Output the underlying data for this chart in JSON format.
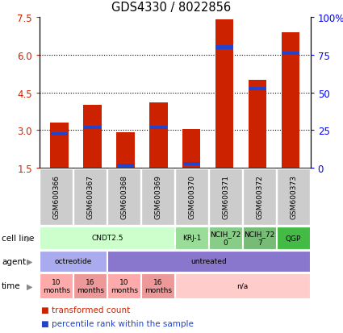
{
  "title": "GDS4330 / 8022856",
  "samples": [
    "GSM600366",
    "GSM600367",
    "GSM600368",
    "GSM600369",
    "GSM600370",
    "GSM600371",
    "GSM600372",
    "GSM600373"
  ],
  "bar_values": [
    3.3,
    4.0,
    2.9,
    4.1,
    3.05,
    7.4,
    5.0,
    6.9
  ],
  "percentile_values": [
    2.85,
    3.1,
    1.6,
    3.1,
    1.65,
    6.3,
    4.65,
    6.05
  ],
  "bar_color": "#cc2200",
  "percentile_color": "#2244cc",
  "ylim": [
    1.5,
    7.5
  ],
  "yticks_left": [
    1.5,
    3.0,
    4.5,
    6.0,
    7.5
  ],
  "yticks_right": [
    0,
    25,
    50,
    75,
    100
  ],
  "ytick_labels_right": [
    "0",
    "25",
    "50",
    "75",
    "100%"
  ],
  "cell_line_groups": [
    {
      "label": "CNDT2.5",
      "start": 0,
      "end": 4,
      "color": "#ccffcc"
    },
    {
      "label": "KRJ-1",
      "start": 4,
      "end": 5,
      "color": "#99dd99"
    },
    {
      "label": "NCIH_72\n0",
      "start": 5,
      "end": 6,
      "color": "#88cc88"
    },
    {
      "label": "NCIH_72\n7",
      "start": 6,
      "end": 7,
      "color": "#77bb77"
    },
    {
      "label": "QGP",
      "start": 7,
      "end": 8,
      "color": "#44bb44"
    }
  ],
  "agent_groups": [
    {
      "label": "octreotide",
      "start": 0,
      "end": 2,
      "color": "#aaaaee"
    },
    {
      "label": "untreated",
      "start": 2,
      "end": 8,
      "color": "#8877cc"
    }
  ],
  "time_groups": [
    {
      "label": "10\nmonths",
      "start": 0,
      "end": 1,
      "color": "#ffaaaa"
    },
    {
      "label": "16\nmonths",
      "start": 1,
      "end": 2,
      "color": "#ee9999"
    },
    {
      "label": "10\nmonths",
      "start": 2,
      "end": 3,
      "color": "#ffaaaa"
    },
    {
      "label": "16\nmonths",
      "start": 3,
      "end": 4,
      "color": "#ee9999"
    },
    {
      "label": "n/a",
      "start": 4,
      "end": 8,
      "color": "#ffcccc"
    }
  ],
  "sample_box_color": "#cccccc",
  "legend_bar_label": "transformed count",
  "legend_pct_label": "percentile rank within the sample"
}
